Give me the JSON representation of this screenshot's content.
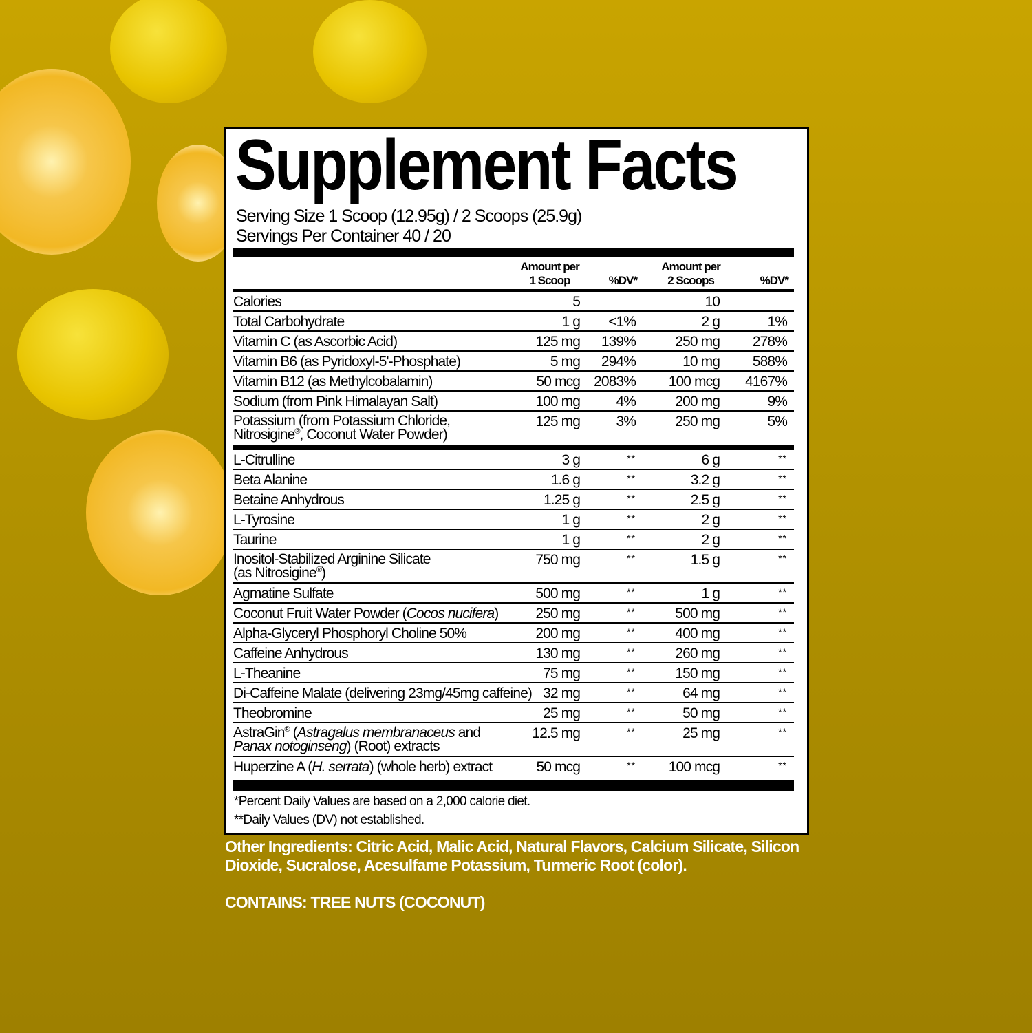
{
  "colors": {
    "background": "#b39300",
    "label": "#ffffff",
    "text": "#000000",
    "other_text": "#ffffff"
  },
  "title": "Supplement Facts",
  "serving_size": "Serving Size 1 Scoop (12.95g) / 2 Scoops (25.9g)",
  "servings_per_container": "Servings Per Container 40 / 20",
  "header": {
    "amount1_line1": "Amount per",
    "amount1_line2": "1 Scoop",
    "dv1": "%DV*",
    "amount2_line1": "Amount per",
    "amount2_line2": "2 Scoops",
    "dv2": "%DV*"
  },
  "section1": [
    {
      "name": [
        [
          {
            "t": "Calories"
          }
        ]
      ],
      "a1": "5",
      "d1": "",
      "a2": "10",
      "d2": ""
    },
    {
      "name": [
        [
          {
            "t": "Total Carbohydrate"
          }
        ]
      ],
      "a1": "1 g",
      "d1": "<1%",
      "a2": "2 g",
      "d2": "1%"
    },
    {
      "name": [
        [
          {
            "t": "Vitamin C (as Ascorbic Acid)"
          }
        ]
      ],
      "a1": "125 mg",
      "d1": "139%",
      "a2": "250 mg",
      "d2": "278%"
    },
    {
      "name": [
        [
          {
            "t": "Vitamin B6 (as Pyridoxyl-5'-Phosphate)"
          }
        ]
      ],
      "a1": "5 mg",
      "d1": "294%",
      "a2": "10 mg",
      "d2": "588%"
    },
    {
      "name": [
        [
          {
            "t": "Vitamin B12 (as Methylcobalamin)"
          }
        ]
      ],
      "a1": "50 mcg",
      "d1": "2083%",
      "a2": "100 mcg",
      "d2": "4167%"
    },
    {
      "name": [
        [
          {
            "t": "Sodium (from Pink Himalayan Salt)"
          }
        ]
      ],
      "a1": "100 mg",
      "d1": "4%",
      "a2": "200 mg",
      "d2": "9%"
    },
    {
      "name": [
        [
          {
            "t": "Potassium (from Potassium Chloride,"
          }
        ],
        [
          {
            "t": "Nitrosigine"
          },
          {
            "t": "®",
            "s": "sup"
          },
          {
            "t": ", Coconut Water Powder)"
          }
        ]
      ],
      "a1": "125 mg",
      "d1": "3%",
      "a2": "250 mg",
      "d2": "5%"
    }
  ],
  "section2": [
    {
      "name": [
        [
          {
            "t": "L-Citrulline"
          }
        ]
      ],
      "a1": "3 g",
      "d1": "**",
      "a2": "6 g",
      "d2": "**"
    },
    {
      "name": [
        [
          {
            "t": "Beta Alanine"
          }
        ]
      ],
      "a1": "1.6 g",
      "d1": "**",
      "a2": "3.2 g",
      "d2": "**"
    },
    {
      "name": [
        [
          {
            "t": "Betaine Anhydrous"
          }
        ]
      ],
      "a1": "1.25 g",
      "d1": "**",
      "a2": "2.5 g",
      "d2": "**"
    },
    {
      "name": [
        [
          {
            "t": "L-Tyrosine"
          }
        ]
      ],
      "a1": "1 g",
      "d1": "**",
      "a2": "2 g",
      "d2": "**"
    },
    {
      "name": [
        [
          {
            "t": "Taurine"
          }
        ]
      ],
      "a1": "1 g",
      "d1": "**",
      "a2": "2 g",
      "d2": "**"
    },
    {
      "name": [
        [
          {
            "t": "Inositol-Stabilized Arginine Silicate"
          }
        ],
        [
          {
            "t": "(as Nitrosigine"
          },
          {
            "t": "®",
            "s": "sup"
          },
          {
            "t": ")"
          }
        ]
      ],
      "a1": "750 mg",
      "d1": "**",
      "a2": "1.5 g",
      "d2": "**"
    },
    {
      "name": [
        [
          {
            "t": "Agmatine Sulfate"
          }
        ]
      ],
      "a1": "500 mg",
      "d1": "**",
      "a2": "1 g",
      "d2": "**"
    },
    {
      "name": [
        [
          {
            "t": "Coconut Fruit Water Powder ("
          },
          {
            "t": "Cocos nucifera",
            "s": "i"
          },
          {
            "t": ")"
          }
        ]
      ],
      "a1": "250 mg",
      "d1": "**",
      "a2": "500 mg",
      "d2": "**"
    },
    {
      "name": [
        [
          {
            "t": "Alpha-Glyceryl Phosphoryl Choline 50%"
          }
        ]
      ],
      "a1": "200 mg",
      "d1": "**",
      "a2": "400 mg",
      "d2": "**"
    },
    {
      "name": [
        [
          {
            "t": "Caffeine Anhydrous"
          }
        ]
      ],
      "a1": "130 mg",
      "d1": "**",
      "a2": "260 mg",
      "d2": "**"
    },
    {
      "name": [
        [
          {
            "t": "L-Theanine"
          }
        ]
      ],
      "a1": "75 mg",
      "d1": "**",
      "a2": "150 mg",
      "d2": "**"
    },
    {
      "name": [
        [
          {
            "t": "Di-Caffeine Malate (delivering 23mg/45mg caffeine)"
          }
        ]
      ],
      "a1": "32 mg",
      "d1": "**",
      "a2": "64 mg",
      "d2": "**"
    },
    {
      "name": [
        [
          {
            "t": "Theobromine"
          }
        ]
      ],
      "a1": "25 mg",
      "d1": "**",
      "a2": "50 mg",
      "d2": "**"
    },
    {
      "name": [
        [
          {
            "t": "AstraGin"
          },
          {
            "t": "®",
            "s": "sup"
          },
          {
            "t": " ("
          },
          {
            "t": "Astragalus membranaceus",
            "s": "i"
          },
          {
            "t": " and"
          }
        ],
        [
          {
            "t": "Panax notoginseng",
            "s": "i"
          },
          {
            "t": ") (Root) extracts"
          }
        ]
      ],
      "a1": "12.5 mg",
      "d1": "**",
      "a2": "25 mg",
      "d2": "**"
    },
    {
      "name": [
        [
          {
            "t": "Huperzine A ("
          },
          {
            "t": "H. serrata",
            "s": "i"
          },
          {
            "t": ") (whole herb) extract"
          }
        ]
      ],
      "a1": "50 mcg",
      "d1": "**",
      "a2": "100 mcg",
      "d2": "**"
    }
  ],
  "footnotes": [
    "*Percent Daily Values are based on a 2,000 calorie diet.",
    "**Daily Values (DV) not established."
  ],
  "other_ingredients": [
    "Other Ingredients: Citric Acid, Malic Acid, Natural Flavors, Calcium Silicate, Silicon",
    "Dioxide, Sucralose, Acesulfame Potassium, Turmeric Root (color)."
  ],
  "contains": "CONTAINS: TREE NUTS (COCONUT)"
}
